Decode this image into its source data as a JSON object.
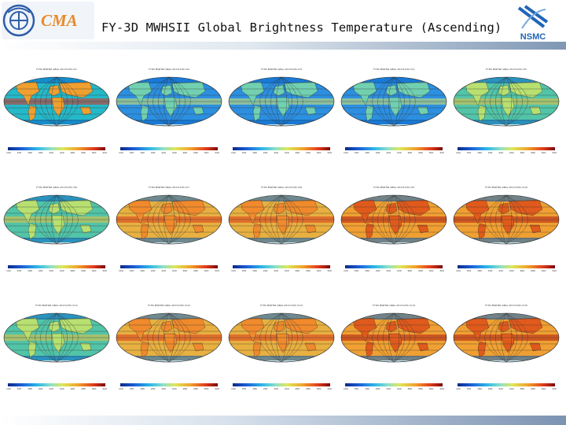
{
  "header": {
    "title": "FY-3D MWHSII Global Brightness Temperature (Ascending)",
    "logo_left_text": "CMA",
    "logo_right_text": "NSMC"
  },
  "colors": {
    "cma_blue": "#2e5ea8",
    "cma_orange": "#e88a2a",
    "nsmc_blue": "#1f66b8",
    "ocean_cold": "#1a5cd6",
    "land_warm": "#e03a1c"
  },
  "grid": {
    "rows": 3,
    "cols": 5,
    "panels": [
      {
        "label": "FY3D MWHSII GBAL 20171230 ch1",
        "theme": "mixed"
      },
      {
        "label": "FY3D MWHSII GBAL 20171230 ch2",
        "theme": "cold"
      },
      {
        "label": "FY3D MWHSII GBAL 20171230 ch3",
        "theme": "cold"
      },
      {
        "label": "FY3D MWHSII GBAL 20171230 ch4",
        "theme": "cold"
      },
      {
        "label": "FY3D MWHSII GBAL 20171230 ch5",
        "theme": "mild"
      },
      {
        "label": "FY3D MWHSII GBAL 20171230 ch6",
        "theme": "mild"
      },
      {
        "label": "FY3D MWHSII GBAL 20171230 ch7",
        "theme": "warm"
      },
      {
        "label": "FY3D MWHSII GBAL 20171230 ch8",
        "theme": "warm"
      },
      {
        "label": "FY3D MWHSII GBAL 20171230 ch9",
        "theme": "hot"
      },
      {
        "label": "FY3D MWHSII GBAL 20171230 ch10",
        "theme": "hot"
      },
      {
        "label": "FY3D MWHSII GBAL 20171230 ch11",
        "theme": "mild"
      },
      {
        "label": "FY3D MWHSII GBAL 20171230 ch12",
        "theme": "warm"
      },
      {
        "label": "FY3D MWHSII GBAL 20171230 ch13",
        "theme": "warm"
      },
      {
        "label": "FY3D MWHSII GBAL 20171230 ch14",
        "theme": "hot"
      },
      {
        "label": "FY3D MWHSII GBAL 20171230 ch15",
        "theme": "hot"
      }
    ]
  }
}
